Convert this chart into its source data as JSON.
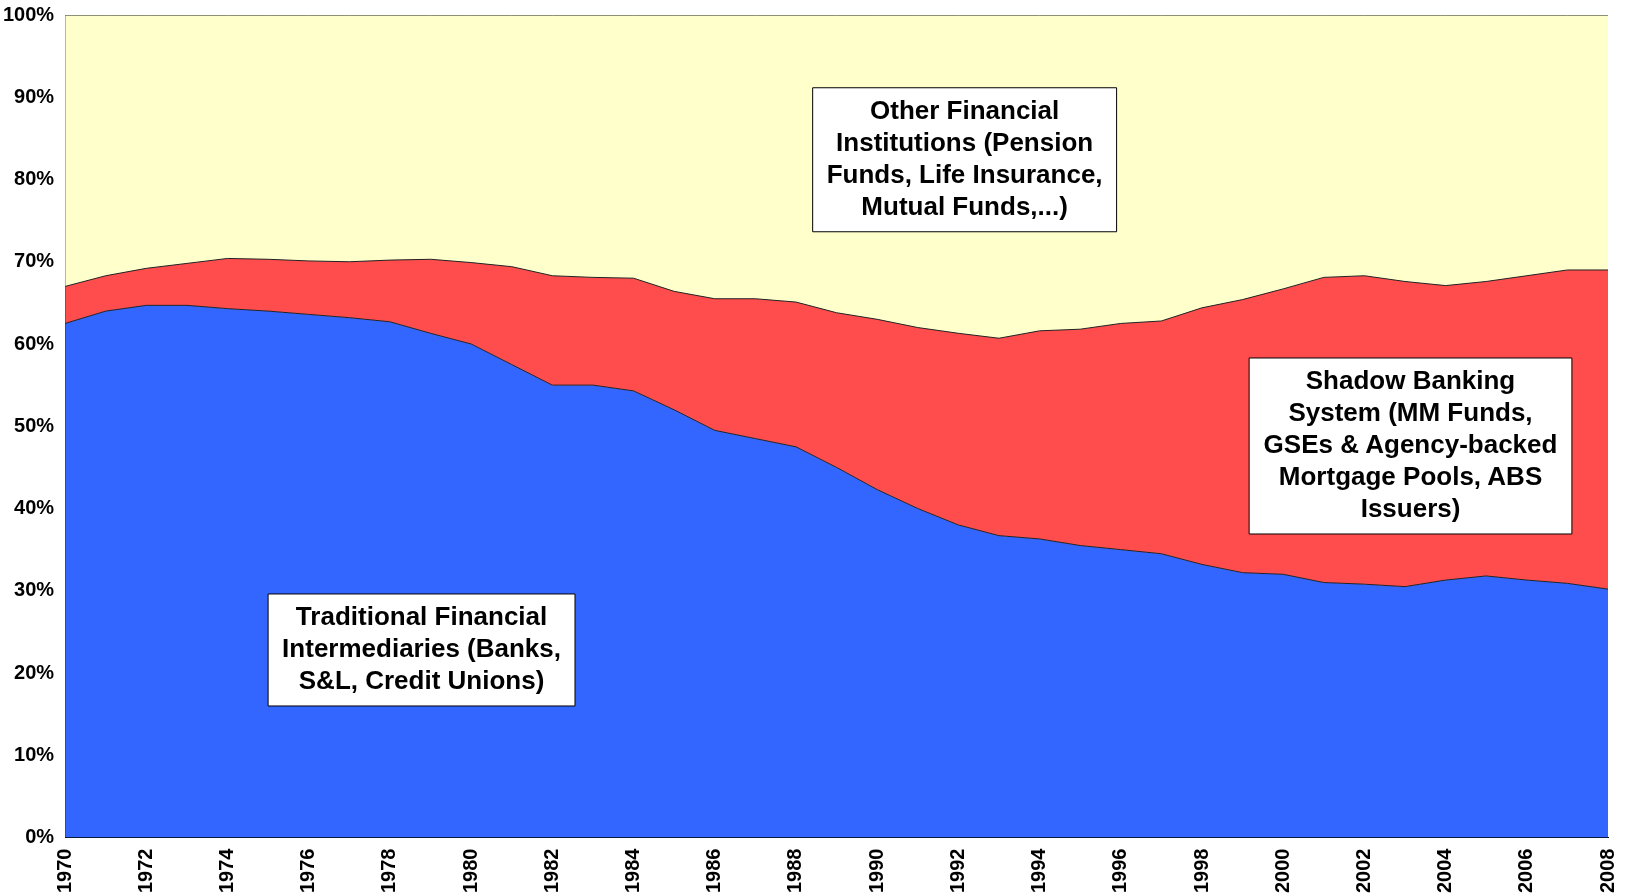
{
  "chart_data": {
    "type": "area",
    "stacked": true,
    "x": [
      1970,
      1971,
      1972,
      1973,
      1974,
      1975,
      1976,
      1977,
      1978,
      1979,
      1980,
      1981,
      1982,
      1983,
      1984,
      1985,
      1986,
      1987,
      1988,
      1989,
      1990,
      1991,
      1992,
      1993,
      1994,
      1995,
      1996,
      1997,
      1998,
      1999,
      2000,
      2001,
      2002,
      2003,
      2004,
      2005,
      2006,
      2007,
      2008
    ],
    "series": [
      {
        "name": "Traditional Financial Intermediaries (Banks, S&L, Credit Unions)",
        "color": "#3366ff",
        "values": [
          62.5,
          64,
          64.7,
          64.7,
          64.3,
          64,
          63.6,
          63.2,
          62.7,
          61.3,
          60,
          57.5,
          55,
          55,
          54.3,
          52,
          49.5,
          48.5,
          47.5,
          45,
          42.3,
          40,
          38,
          36.7,
          36.3,
          35.5,
          35,
          34.5,
          33.2,
          32.2,
          32,
          31,
          30.8,
          30.5,
          31.3,
          31.8,
          31.3,
          30.9,
          30.2
        ]
      },
      {
        "name": "Shadow Banking System (MM Funds, GSEs & Agency-backed Mortgage Pools, ABS Issuers)",
        "color": "#ff4d4d",
        "values": [
          4.5,
          4.3,
          4.5,
          5.1,
          6.1,
          6.3,
          6.5,
          6.8,
          7.5,
          9,
          9.9,
          11.9,
          13.3,
          13.1,
          13.7,
          14.4,
          16,
          17,
          17.6,
          18.8,
          20.7,
          22,
          23.3,
          24,
          25.3,
          26.3,
          27.5,
          28.3,
          31.2,
          33.2,
          34.7,
          37.1,
          37.5,
          37.1,
          35.8,
          35.8,
          37,
          38.1,
          38.8
        ]
      },
      {
        "name": "Other Financial Institutions (Pension Funds, Life Insurance, Mutual Funds,...)",
        "color": "#ffffcc",
        "values": [
          33,
          31.7,
          30.8,
          30.2,
          29.6,
          29.7,
          29.9,
          30,
          29.8,
          29.7,
          30.1,
          30.6,
          31.7,
          31.9,
          32,
          33.6,
          34.5,
          34.5,
          34.9,
          36.2,
          37,
          38,
          38.7,
          39.3,
          38.4,
          38.2,
          37.5,
          37.2,
          35.6,
          34.6,
          33.3,
          31.9,
          31.7,
          32.4,
          32.9,
          32.4,
          31.7,
          31,
          31
        ]
      }
    ],
    "xlim": [
      1970,
      2008
    ],
    "xticks": [
      1970,
      1972,
      1974,
      1976,
      1978,
      1980,
      1982,
      1984,
      1986,
      1988,
      1990,
      1992,
      1994,
      1996,
      1998,
      2000,
      2002,
      2004,
      2006,
      2008
    ],
    "ylim": [
      0,
      100
    ],
    "yticks": [
      {
        "value": 0,
        "label": "0%"
      },
      {
        "value": 10,
        "label": "10%"
      },
      {
        "value": 20,
        "label": "20%"
      },
      {
        "value": 30,
        "label": "30%"
      },
      {
        "value": 40,
        "label": "40%"
      },
      {
        "value": 50,
        "label": "50%"
      },
      {
        "value": 60,
        "label": "60%"
      },
      {
        "value": 70,
        "label": "70%"
      },
      {
        "value": 80,
        "label": "80%"
      },
      {
        "value": 90,
        "label": "90%"
      },
      {
        "value": 100,
        "label": "100%"
      }
    ],
    "grid": false,
    "legend": false
  }
}
